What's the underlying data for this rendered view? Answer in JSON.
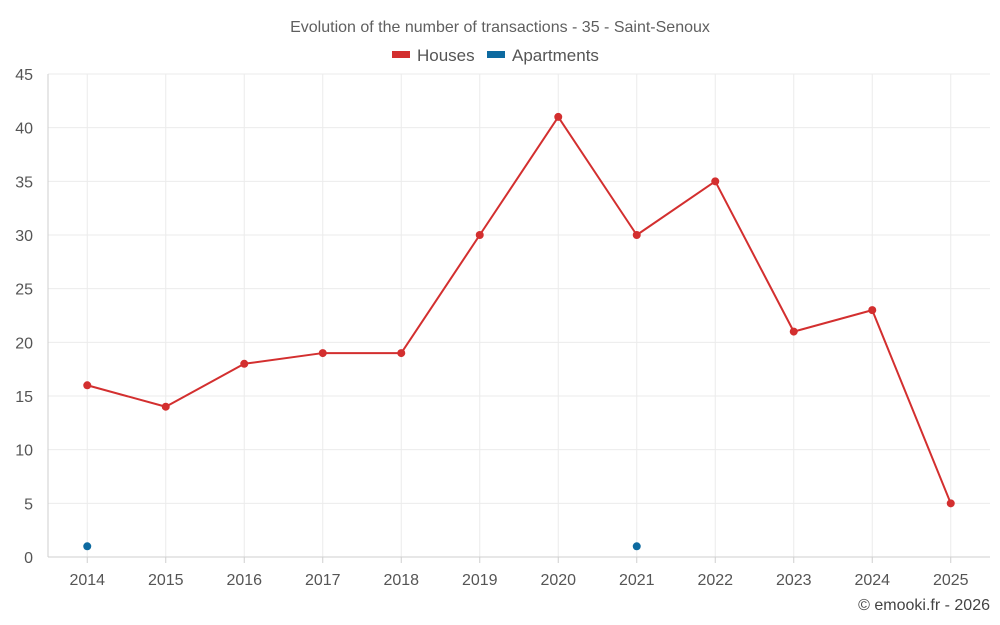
{
  "chart_data": {
    "type": "line",
    "title": "Evolution of the number of transactions - 35 - Saint-Senoux",
    "categories": [
      "2014",
      "2015",
      "2016",
      "2017",
      "2018",
      "2019",
      "2020",
      "2021",
      "2022",
      "2023",
      "2024",
      "2025"
    ],
    "y_ticks": [
      "0",
      "5",
      "10",
      "15",
      "20",
      "25",
      "30",
      "35",
      "40",
      "45"
    ],
    "ylim": [
      0,
      45
    ],
    "xlabel": "",
    "ylabel": "",
    "grid": true,
    "legend_position": "top-center",
    "series": [
      {
        "name": "Houses",
        "color": "#d32f2f",
        "values": [
          16,
          14,
          18,
          19,
          19,
          30,
          41,
          30,
          35,
          21,
          23,
          5
        ]
      },
      {
        "name": "Apartments",
        "color": "#0d6aa0",
        "values": [
          1,
          null,
          null,
          null,
          null,
          null,
          null,
          1,
          null,
          null,
          null,
          null
        ]
      }
    ]
  },
  "credit": "© emooki.fr - 2026"
}
